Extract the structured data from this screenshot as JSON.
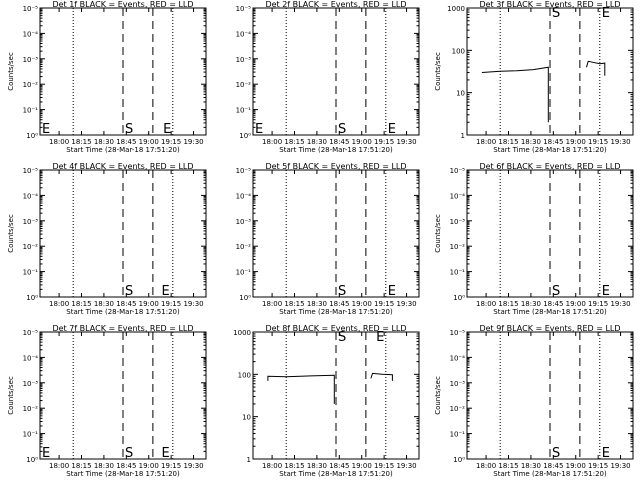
{
  "chart_data": [
    {
      "type": "line",
      "title": "Det 1f BLACK = Events, RED = LLD",
      "xlabel": "Start Time (28-Mar-18 17:51:20)",
      "ylabel": "Counts/sec",
      "x_ticks": [
        "18:00",
        "18:15",
        "18:30",
        "18:45",
        "19:00",
        "19:15",
        "19:30"
      ],
      "y_ticks": [
        "10⁰",
        "10⁻¹",
        "10⁻²",
        "10⁻³",
        "10⁻⁴",
        "10⁻⁵"
      ],
      "markers": [
        {
          "label": "E",
          "pos": 0.0
        },
        {
          "label": "S",
          "pos": 0.5
        },
        {
          "label": "E",
          "pos": 0.73
        }
      ],
      "dotted": [
        0.2,
        0.8
      ],
      "dashed": [
        0.5,
        0.68
      ],
      "series": []
    },
    {
      "type": "line",
      "title": "Det 2f BLACK = Events, RED = LLD",
      "xlabel": "Start Time (28-Mar-18 17:51:20)",
      "ylabel": "",
      "x_ticks": [
        "18:00",
        "18:15",
        "18:30",
        "18:45",
        "19:00",
        "19:15",
        "19:30"
      ],
      "y_ticks": [
        "10⁰",
        "10⁻¹",
        "10⁻²",
        "10⁻³",
        "10⁻⁴",
        "10⁻⁵"
      ],
      "markers": [
        {
          "label": "E",
          "pos": 0.0
        },
        {
          "label": "S",
          "pos": 0.5
        },
        {
          "label": "E",
          "pos": 0.8
        }
      ],
      "dotted": [
        0.2,
        0.8
      ],
      "dashed": [
        0.5,
        0.68
      ],
      "series": []
    },
    {
      "type": "line",
      "title": "Det 3f BLACK = Events, RED = LLD",
      "xlabel": "Start Time (28-Mar-18 17:51:20)",
      "ylabel": "Counts/sec",
      "ylog": true,
      "ylim": [
        1,
        1000
      ],
      "x_ticks": [
        "18:00",
        "18:15",
        "18:30",
        "18:45",
        "19:00",
        "19:15",
        "19:30"
      ],
      "y_ticks": [
        "1",
        "10",
        "100",
        "1000"
      ],
      "markers": [
        {
          "label": "S",
          "pos": 0.5
        },
        {
          "label": "E",
          "pos": 0.8
        }
      ],
      "dotted": [
        0.2,
        0.8
      ],
      "dashed": [
        0.5,
        0.68
      ],
      "series": [
        {
          "x": [
            0.09,
            0.2,
            0.3,
            0.4,
            0.49,
            0.49
          ],
          "y": [
            30,
            32,
            33,
            35,
            40,
            2
          ]
        },
        {
          "x": [
            0.72,
            0.73,
            0.8,
            0.83,
            0.83
          ],
          "y": [
            40,
            55,
            48,
            50,
            25
          ]
        }
      ]
    },
    {
      "type": "line",
      "title": "Det 4f BLACK = Events, RED = LLD",
      "xlabel": "Start Time (28-Mar-18 17:51:20)",
      "ylabel": "Counts/sec",
      "x_ticks": [
        "18:00",
        "18:15",
        "18:30",
        "18:45",
        "19:00",
        "19:15",
        "19:30"
      ],
      "y_ticks": [
        "10⁰",
        "10⁻¹",
        "10⁻²",
        "10⁻³",
        "10⁻⁴",
        "10⁻⁵"
      ],
      "markers": [
        {
          "label": "S",
          "pos": 0.5
        },
        {
          "label": "E",
          "pos": 0.72
        }
      ],
      "dotted": [
        0.2,
        0.8
      ],
      "dashed": [
        0.5,
        0.68
      ],
      "series": []
    },
    {
      "type": "line",
      "title": "Det 5f BLACK = Events, RED = LLD",
      "xlabel": "Start Time (28-Mar-18 17:51:20)",
      "ylabel": "",
      "x_ticks": [
        "18:00",
        "18:15",
        "18:30",
        "18:45",
        "19:00",
        "19:15",
        "19:30"
      ],
      "y_ticks": [
        "10⁰",
        "10⁻¹",
        "10⁻²",
        "10⁻³",
        "10⁻⁴",
        "10⁻⁵"
      ],
      "markers": [
        {
          "label": "S",
          "pos": 0.5
        },
        {
          "label": "E",
          "pos": 0.8
        }
      ],
      "dotted": [
        0.2,
        0.8
      ],
      "dashed": [
        0.5,
        0.68
      ],
      "series": []
    },
    {
      "type": "line",
      "title": "Det 6f BLACK = Events, RED = LLD",
      "xlabel": "Start Time (28-Mar-18 17:51:20)",
      "ylabel": "Counts/sec",
      "x_ticks": [
        "18:00",
        "18:15",
        "18:30",
        "18:45",
        "19:00",
        "19:15",
        "19:30"
      ],
      "y_ticks": [
        "10⁰",
        "10⁻¹",
        "10⁻²",
        "10⁻³",
        "10⁻⁴",
        "10⁻⁵"
      ],
      "markers": [
        {
          "label": "S",
          "pos": 0.5
        },
        {
          "label": "E",
          "pos": 0.8
        }
      ],
      "dotted": [
        0.2,
        0.8
      ],
      "dashed": [
        0.5,
        0.68
      ],
      "series": []
    },
    {
      "type": "line",
      "title": "Det 7f BLACK = Events, RED = LLD",
      "xlabel": "Start Time (28-Mar-18 17:51:20)",
      "ylabel": "Counts/sec",
      "x_ticks": [
        "18:00",
        "18:15",
        "18:30",
        "18:45",
        "19:00",
        "19:15",
        "19:30"
      ],
      "y_ticks": [
        "10⁰",
        "10⁻¹",
        "10⁻²",
        "10⁻³",
        "10⁻⁴",
        "10⁻⁵"
      ],
      "markers": [
        {
          "label": "E",
          "pos": 0.0
        },
        {
          "label": "S",
          "pos": 0.5
        },
        {
          "label": "E",
          "pos": 0.72
        }
      ],
      "dotted": [
        0.2,
        0.8
      ],
      "dashed": [
        0.5,
        0.68
      ],
      "series": []
    },
    {
      "type": "line",
      "title": "Det 8f BLACK = Events, RED = LLD",
      "xlabel": "Start Time (28-Mar-18 17:51:20)",
      "ylabel": "",
      "ylog": true,
      "ylim": [
        1,
        1000
      ],
      "x_ticks": [
        "18:00",
        "18:15",
        "18:30",
        "18:45",
        "19:00",
        "19:15",
        "19:30"
      ],
      "y_ticks": [
        "1",
        "10",
        "100",
        "1000"
      ],
      "markers": [
        {
          "label": "S",
          "pos": 0.5
        },
        {
          "label": "E",
          "pos": 0.73
        }
      ],
      "dotted": [
        0.2,
        0.8
      ],
      "dashed": [
        0.5,
        0.68
      ],
      "series": [
        {
          "x": [
            0.09,
            0.09,
            0.2,
            0.35,
            0.49,
            0.49
          ],
          "y": [
            70,
            90,
            88,
            92,
            95,
            20
          ]
        },
        {
          "x": [
            0.71,
            0.72,
            0.78,
            0.84,
            0.84
          ],
          "y": [
            80,
            105,
            100,
            98,
            70
          ]
        }
      ]
    },
    {
      "type": "line",
      "title": "Det 9f BLACK = Events, RED = LLD",
      "xlabel": "Start Time (28-Mar-18 17:51:20)",
      "ylabel": "Counts/sec",
      "x_ticks": [
        "18:00",
        "18:15",
        "18:30",
        "18:45",
        "19:00",
        "19:15",
        "19:30"
      ],
      "y_ticks": [
        "10⁰",
        "10⁻¹",
        "10⁻²",
        "10⁻³",
        "10⁻⁴",
        "10⁻⁵"
      ],
      "markers": [
        {
          "label": "S",
          "pos": 0.5
        },
        {
          "label": "E",
          "pos": 0.8
        }
      ],
      "dotted": [
        0.2,
        0.8
      ],
      "dashed": [
        0.5,
        0.68
      ],
      "series": []
    }
  ]
}
